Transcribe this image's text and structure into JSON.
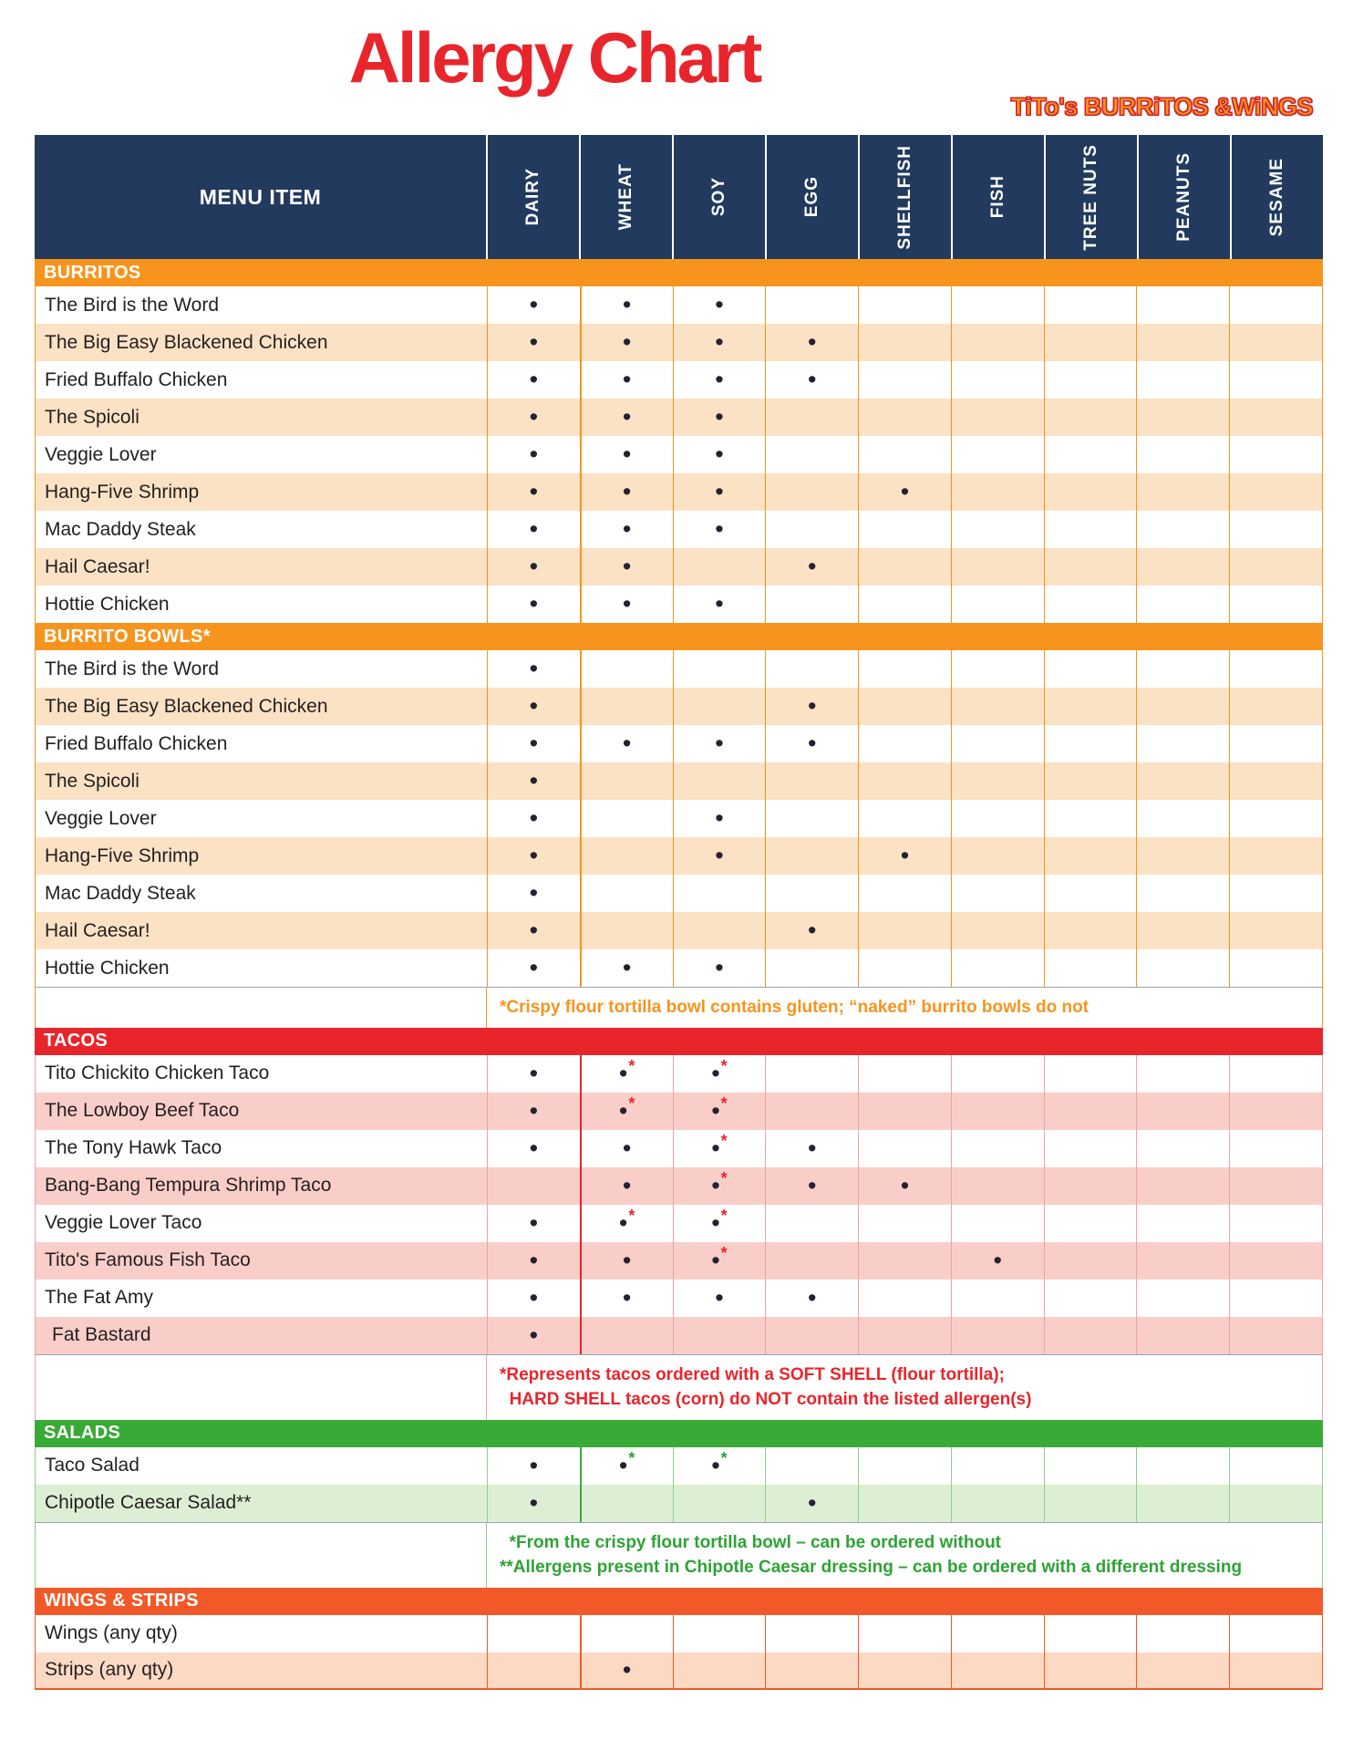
{
  "title": "Allergy Chart",
  "brand": "TiTo's BURRiTOS &WiNGS",
  "colors": {
    "header_navy": "#213A5E",
    "title_red": "#E9252C",
    "brand_orange": "#F7941D",
    "dot": "#252131"
  },
  "table": {
    "menu_column_header": "MENU ITEM",
    "columns": [
      "DAIRY",
      "WHEAT",
      "SOY",
      "EGG",
      "SHELLFISH",
      "FISH",
      "TREE NUTS",
      "PEANUTS",
      "SESAME"
    ],
    "sections": [
      {
        "title": "BURRITOS",
        "header_bg": "#F7941E",
        "tint": "#FCE2C4",
        "grid": "#F7941E",
        "divider": "#F7941E",
        "star_color": "#E9252C",
        "rows": [
          {
            "label": "The Bird is the Word",
            "marks": [
              1,
              1,
              1,
              0,
              0,
              0,
              0,
              0,
              0
            ]
          },
          {
            "label": "The Big Easy Blackened Chicken",
            "marks": [
              1,
              1,
              1,
              1,
              0,
              0,
              0,
              0,
              0
            ]
          },
          {
            "label": "Fried Buffalo Chicken",
            "marks": [
              1,
              1,
              1,
              1,
              0,
              0,
              0,
              0,
              0
            ]
          },
          {
            "label": "The Spicoli",
            "marks": [
              1,
              1,
              1,
              0,
              0,
              0,
              0,
              0,
              0
            ]
          },
          {
            "label": "Veggie Lover",
            "marks": [
              1,
              1,
              1,
              0,
              0,
              0,
              0,
              0,
              0
            ]
          },
          {
            "label": "Hang-Five Shrimp",
            "marks": [
              1,
              1,
              1,
              0,
              1,
              0,
              0,
              0,
              0
            ]
          },
          {
            "label": "Mac Daddy Steak",
            "marks": [
              1,
              1,
              1,
              0,
              0,
              0,
              0,
              0,
              0
            ]
          },
          {
            "label": "Hail Caesar!",
            "marks": [
              1,
              1,
              0,
              1,
              0,
              0,
              0,
              0,
              0
            ]
          },
          {
            "label": "Hottie Chicken",
            "marks": [
              1,
              1,
              1,
              0,
              0,
              0,
              0,
              0,
              0
            ]
          }
        ]
      },
      {
        "title": "BURRITO BOWLS*",
        "header_bg": "#F7941E",
        "tint": "#FCE2C4",
        "grid": "#F7941E",
        "divider": "#F7941E",
        "star_color": "#E9252C",
        "rows": [
          {
            "label": "The Bird is the Word",
            "marks": [
              1,
              0,
              0,
              0,
              0,
              0,
              0,
              0,
              0
            ]
          },
          {
            "label": "The Big Easy Blackened Chicken",
            "marks": [
              1,
              0,
              0,
              1,
              0,
              0,
              0,
              0,
              0
            ]
          },
          {
            "label": "Fried Buffalo Chicken",
            "marks": [
              1,
              1,
              1,
              1,
              0,
              0,
              0,
              0,
              0
            ]
          },
          {
            "label": "The Spicoli",
            "marks": [
              1,
              0,
              0,
              0,
              0,
              0,
              0,
              0,
              0
            ]
          },
          {
            "label": "Veggie Lover",
            "marks": [
              1,
              0,
              1,
              0,
              0,
              0,
              0,
              0,
              0
            ]
          },
          {
            "label": "Hang-Five Shrimp",
            "marks": [
              1,
              0,
              1,
              0,
              1,
              0,
              0,
              0,
              0
            ]
          },
          {
            "label": "Mac Daddy Steak",
            "marks": [
              1,
              0,
              0,
              0,
              0,
              0,
              0,
              0,
              0
            ]
          },
          {
            "label": "Hail Caesar!",
            "marks": [
              1,
              0,
              0,
              1,
              0,
              0,
              0,
              0,
              0
            ]
          },
          {
            "label": "Hottie Chicken",
            "marks": [
              1,
              1,
              1,
              0,
              0,
              0,
              0,
              0,
              0
            ]
          }
        ],
        "footnote": {
          "color": "#F7941E",
          "lines": [
            "*Crispy flour tortilla bowl contains gluten; “naked” burrito bowls do not"
          ]
        }
      },
      {
        "title": "TACOS",
        "header_bg": "#E9252C",
        "tint": "#F9CEC9",
        "grid": "#F2A1A4",
        "divider": "#E9252C",
        "star_color": "#E9252C",
        "rows": [
          {
            "label": "Tito Chickito Chicken Taco",
            "marks": [
              1,
              2,
              2,
              0,
              0,
              0,
              0,
              0,
              0
            ]
          },
          {
            "label": "The Lowboy Beef Taco",
            "marks": [
              1,
              2,
              2,
              0,
              0,
              0,
              0,
              0,
              0
            ]
          },
          {
            "label": "The Tony Hawk Taco",
            "marks": [
              1,
              1,
              2,
              1,
              0,
              0,
              0,
              0,
              0
            ]
          },
          {
            "label": "Bang-Bang Tempura Shrimp Taco",
            "marks": [
              0,
              1,
              2,
              1,
              1,
              0,
              0,
              0,
              0
            ]
          },
          {
            "label": "Veggie Lover Taco",
            "marks": [
              1,
              2,
              2,
              0,
              0,
              0,
              0,
              0,
              0
            ]
          },
          {
            "label": "Tito's Famous Fish Taco",
            "marks": [
              1,
              1,
              2,
              0,
              0,
              1,
              0,
              0,
              0
            ]
          },
          {
            "label": "The Fat Amy",
            "marks": [
              1,
              1,
              1,
              1,
              0,
              0,
              0,
              0,
              0
            ]
          },
          {
            "label": "Fat Bastard",
            "indent": true,
            "marks": [
              1,
              0,
              0,
              0,
              0,
              0,
              0,
              0,
              0
            ]
          }
        ],
        "footnote": {
          "color": "#E9252C",
          "lines": [
            "*Represents tacos ordered with a SOFT SHELL (flour tortilla);",
            "  HARD SHELL tacos (corn) do NOT contain the listed allergen(s)"
          ]
        }
      },
      {
        "title": "SALADS",
        "header_bg": "#39AA36",
        "tint": "#DCEFD5",
        "grid": "#8FCE8C",
        "divider": "#39AA36",
        "star_color": "#2EA335",
        "rows": [
          {
            "label": "Taco Salad",
            "marks": [
              1,
              2,
              2,
              0,
              0,
              0,
              0,
              0,
              0
            ]
          },
          {
            "label": "Chipotle Caesar Salad**",
            "marks": [
              1,
              0,
              0,
              1,
              0,
              0,
              0,
              0,
              0
            ]
          }
        ],
        "footnote": {
          "color": "#2EA335",
          "lines": [
            "  *From the crispy flour tortilla bowl – can be ordered without",
            "**Allergens present in Chipotle Caesar dressing – can be ordered with a different dressing"
          ]
        }
      },
      {
        "title": "WINGS & STRIPS",
        "header_bg": "#F15A28",
        "tint": "#FBD9C3",
        "grid": "#F15A28",
        "divider": "#F15A28",
        "star_color": "#E9252C",
        "rows": [
          {
            "label": "Wings (any qty)",
            "marks": [
              0,
              0,
              0,
              0,
              0,
              0,
              0,
              0,
              0
            ]
          },
          {
            "label": "Strips (any qty)",
            "marks": [
              0,
              1,
              0,
              0,
              0,
              0,
              0,
              0,
              0
            ]
          }
        ]
      }
    ]
  }
}
